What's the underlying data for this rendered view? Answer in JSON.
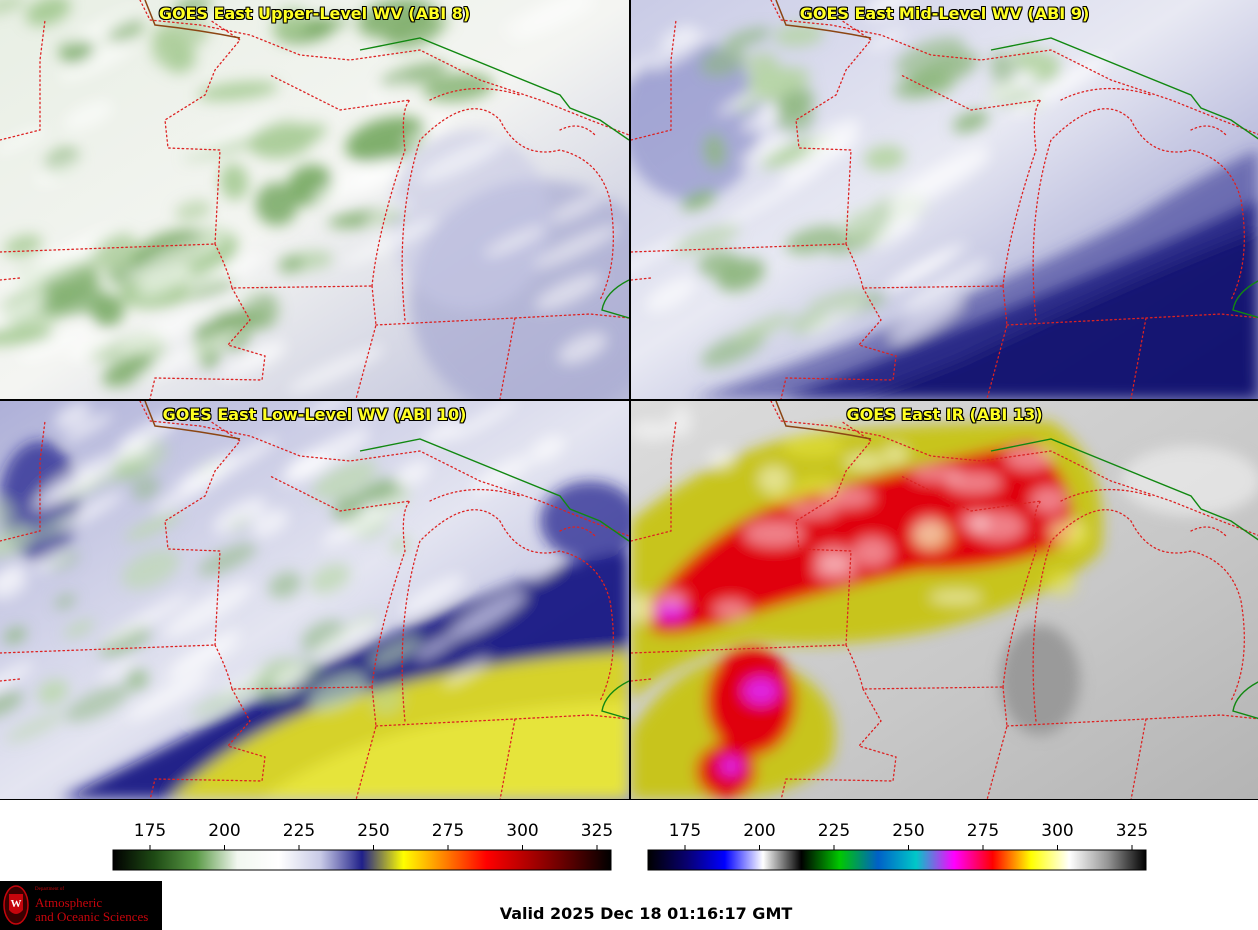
{
  "panels": [
    {
      "title": "GOES East Upper-Level WV (ABI 8)",
      "scheme": "wv-upper"
    },
    {
      "title": "GOES East Mid-Level WV (ABI 9)",
      "scheme": "wv-mid"
    },
    {
      "title": "GOES East Low-Level WV (ABI 10)",
      "scheme": "wv-low"
    },
    {
      "title": "GOES East IR (ABI 13)",
      "scheme": "ir"
    }
  ],
  "colorbars": [
    {
      "ticks": [
        "175",
        "200",
        "225",
        "250",
        "275",
        "300",
        "325"
      ],
      "stops": [
        "#000000",
        "#1e4a14",
        "#5a9a46",
        "#f2f7f0",
        "#ffffff",
        "#c8cae6",
        "#20208a",
        "#ffff00",
        "#ff8000",
        "#ff0000",
        "#b00000",
        "#5a0000",
        "#000000"
      ]
    },
    {
      "ticks": [
        "175",
        "200",
        "225",
        "250",
        "275",
        "300",
        "325"
      ],
      "stops": [
        "#000000",
        "#08006e",
        "#0000ff",
        "#ffffff",
        "#000000",
        "#00c800",
        "#0060c8",
        "#00c8c8",
        "#ff00ff",
        "#ff0000",
        "#ffff00",
        "#ffffff",
        "#969696",
        "#000000"
      ]
    }
  ],
  "valid_time": "Valid 2025 Dec 18 01:16:17 GMT",
  "logo": {
    "line1": "Department of",
    "line2": "Atmospheric",
    "line3": "and Oceanic Sciences"
  },
  "colors": {
    "border_state": "#dd2222",
    "border_intl": "#8b4513",
    "border_canada": "#118811",
    "title": "#ffff22"
  }
}
